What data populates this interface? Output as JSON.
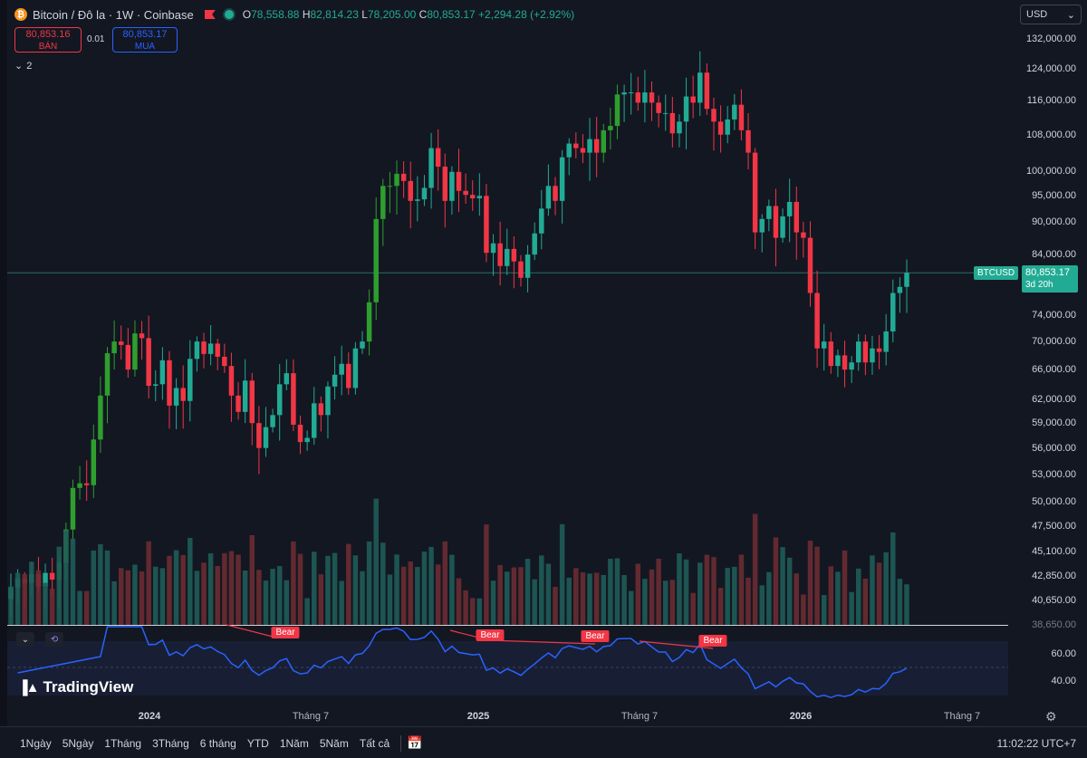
{
  "legend": {
    "title": "Bitcoin / Đô la · 1W · Coinbase",
    "open_label": "O",
    "open": "78,558.88",
    "high_label": "H",
    "high": "82,814.23",
    "low_label": "L",
    "low": "78,205.00",
    "close_label": "C",
    "close": "80,853.17",
    "change": "+2,294.28 (+2.92%)"
  },
  "trade": {
    "sell_price": "80,853.16",
    "sell_label": "BÁN",
    "spread": "0.01",
    "buy_price": "80,853.17",
    "buy_label": "MUA"
  },
  "indicators_count": "2",
  "currency": "USD",
  "price_tag": {
    "symbol": "BTCUSD",
    "price": "80,853.17",
    "countdown": "3d 20h"
  },
  "bottom_bar": {
    "ranges": [
      "1Ngày",
      "5Ngày",
      "1Tháng",
      "3Tháng",
      "6 tháng",
      "YTD",
      "1Năm",
      "5Năm",
      "Tất cả"
    ],
    "clock": "11:02:22 UTC+7"
  },
  "brand": "TradingView",
  "colors": {
    "up": "#22ab94",
    "down": "#f23645",
    "up_strong": "#2e9e2e",
    "rsi": "#2962ff",
    "background": "#131722"
  },
  "chart_data": {
    "type": "candlestick",
    "title": "Bitcoin / Đô la · 1W · Coinbase",
    "price_axis_ticks": [
      "132,000.00",
      "124,000.00",
      "116,000.00",
      "108,000.00",
      "100,000.00",
      "95,000.00",
      "90,000.00",
      "84,000.00",
      "74,000.00",
      "70,000.00",
      "66,000.00",
      "62,000.00",
      "59,000.00",
      "56,000.00",
      "53,000.00",
      "50,000.00",
      "47,500.00",
      "45,100.00",
      "42,850.00",
      "40,650.00",
      "38,650.00"
    ],
    "price_scale": "log",
    "time_axis": [
      {
        "label": "2024",
        "year": true
      },
      {
        "label": "Tháng 7",
        "year": false
      },
      {
        "label": "2025",
        "year": true
      },
      {
        "label": "Tháng 7",
        "year": false
      },
      {
        "label": "2026",
        "year": true
      },
      {
        "label": "Tháng 7",
        "year": false
      }
    ],
    "rsi_axis_ticks": [
      "60.00",
      "40.00"
    ],
    "rsi_annotations": [
      "Bear",
      "Bear",
      "Bear",
      "Bear"
    ],
    "weekly_closes": [
      41800,
      42600,
      42200,
      43000,
      41900,
      43100,
      42500,
      44000,
      47200,
      51500,
      52000,
      51800,
      57000,
      62500,
      68300,
      70000,
      69500,
      66000,
      71200,
      70500,
      63800,
      64000,
      67300,
      61200,
      63500,
      61800,
      67500,
      70000,
      68200,
      69700,
      67800,
      66500,
      62500,
      60400,
      64500,
      59000,
      56000,
      58500,
      60000,
      64000,
      65500,
      58800,
      56700,
      57200,
      61500,
      60000,
      63700,
      65300,
      66800,
      63500,
      69000,
      70000,
      76000,
      90500,
      97000,
      97000,
      99500,
      98000,
      94000,
      94300,
      96600,
      105000,
      101000,
      94000,
      99900,
      96000,
      95200,
      94500,
      95000,
      84300,
      86000,
      82000,
      85000,
      82800,
      80000,
      84000,
      87800,
      92500,
      97000,
      94000,
      103000,
      106000,
      105000,
      104000,
      107000,
      104000,
      109000,
      110000,
      117500,
      118000,
      118000,
      115500,
      118000,
      115500,
      113000,
      113000,
      108300,
      111000,
      117000,
      115500,
      123000,
      114000,
      111000,
      108000,
      111500,
      115000,
      109000,
      104000,
      88000,
      90500,
      93000,
      87000,
      91000,
      93800,
      88000,
      87000,
      77500,
      69000,
      70000,
      66500,
      68000,
      66000,
      67000,
      70000,
      67000,
      69000,
      68500,
      71500,
      77500,
      78500,
      80853
    ]
  }
}
